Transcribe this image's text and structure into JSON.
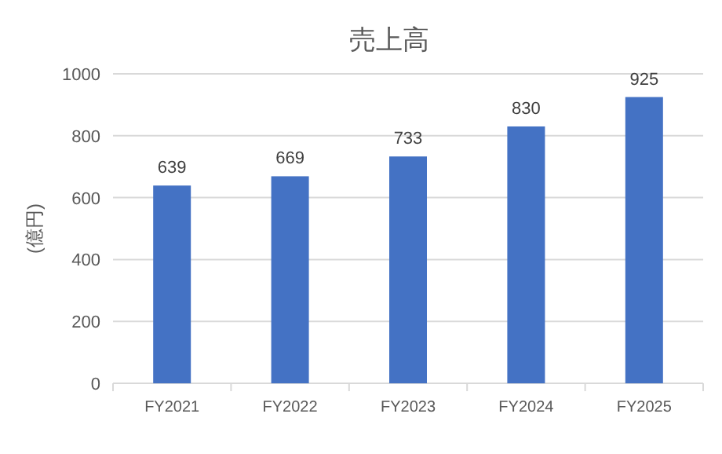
{
  "chart_data": {
    "type": "bar",
    "title": "売上高",
    "ylabel": "(億円)",
    "categories": [
      "FY2021",
      "FY2022",
      "FY2023",
      "FY2024",
      "FY2025"
    ],
    "values": [
      639,
      669,
      733,
      830,
      925
    ],
    "color": "#4472c4",
    "ylim": [
      0,
      1000
    ],
    "yticks": [
      0,
      200,
      400,
      600,
      800,
      1000
    ],
    "grid": "y",
    "data_labels": true
  }
}
